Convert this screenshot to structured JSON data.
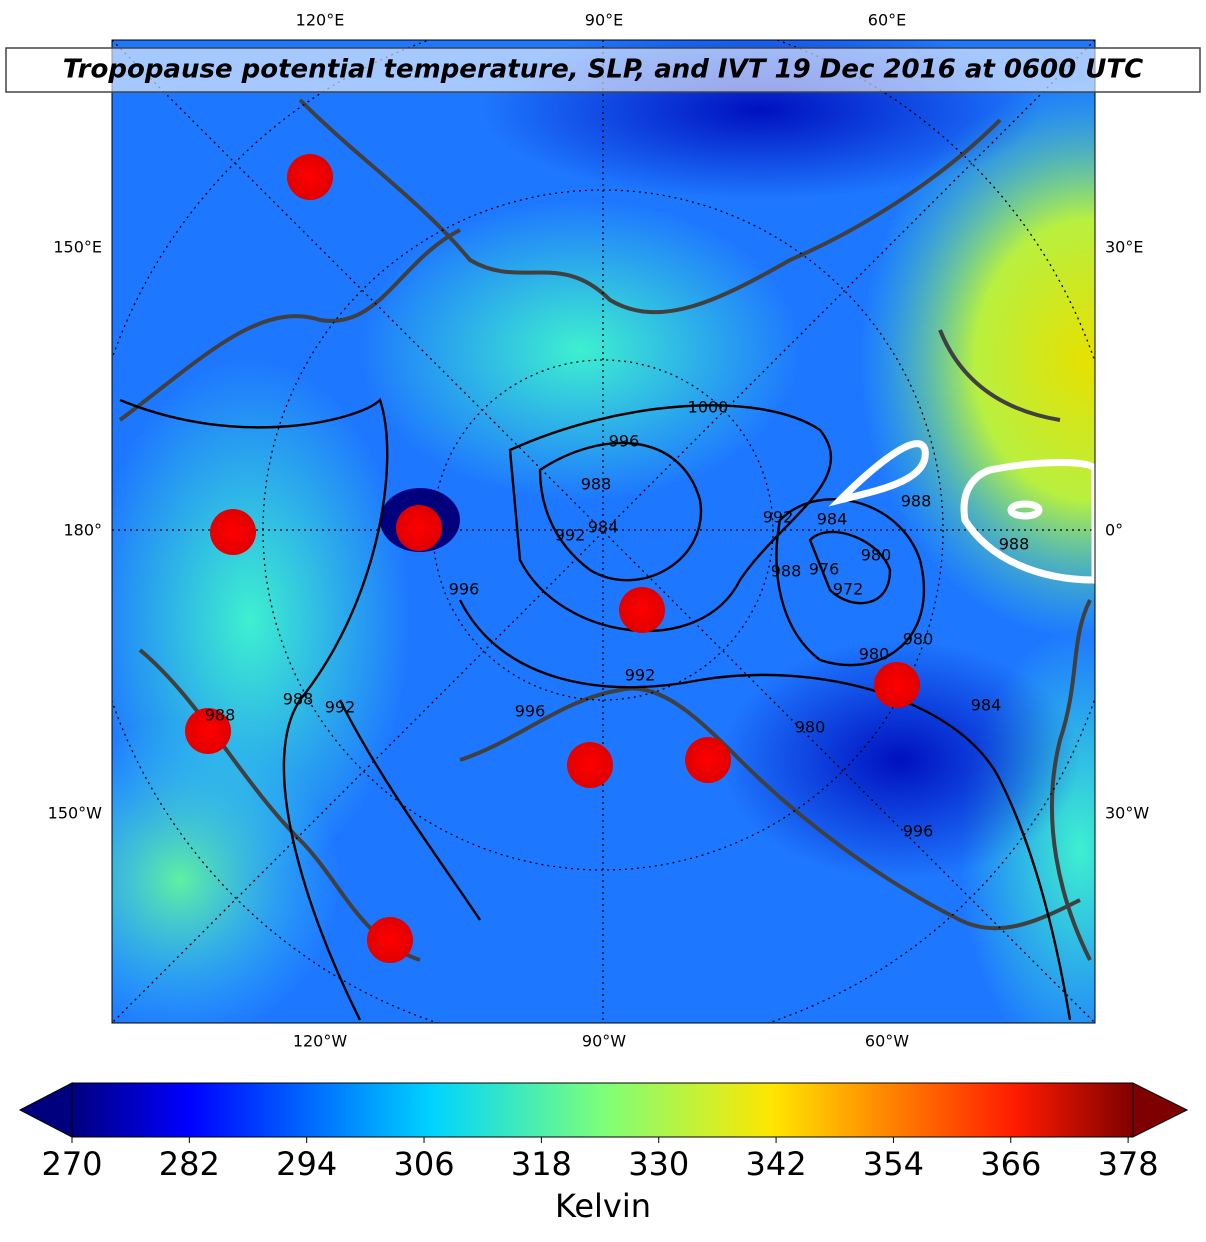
{
  "title": "Tropopause potential temperature, SLP, and IVT 19 Dec 2016 at 0600 UTC",
  "map": {
    "lon_labels_top": [
      "120°E",
      "90°E",
      "60°E"
    ],
    "lon_labels_bottom": [
      "120°W",
      "90°W",
      "60°W"
    ],
    "lon_labels_left": [
      "150°E",
      "180°",
      "150°W"
    ],
    "lon_labels_right": [
      "30°E",
      "0°",
      "30°W"
    ],
    "slp_contour_labels": [
      1000,
      996,
      988,
      984,
      992,
      992,
      984,
      980,
      972,
      976,
      988,
      988,
      988,
      996,
      980,
      980,
      984,
      980,
      992,
      996,
      992,
      988,
      988,
      996
    ]
  },
  "colorbar": {
    "range": [
      270,
      378.5
    ],
    "ticks": [
      270,
      282,
      294,
      306,
      318,
      330,
      342,
      354,
      366,
      378
    ],
    "label": "Kelvin"
  }
}
